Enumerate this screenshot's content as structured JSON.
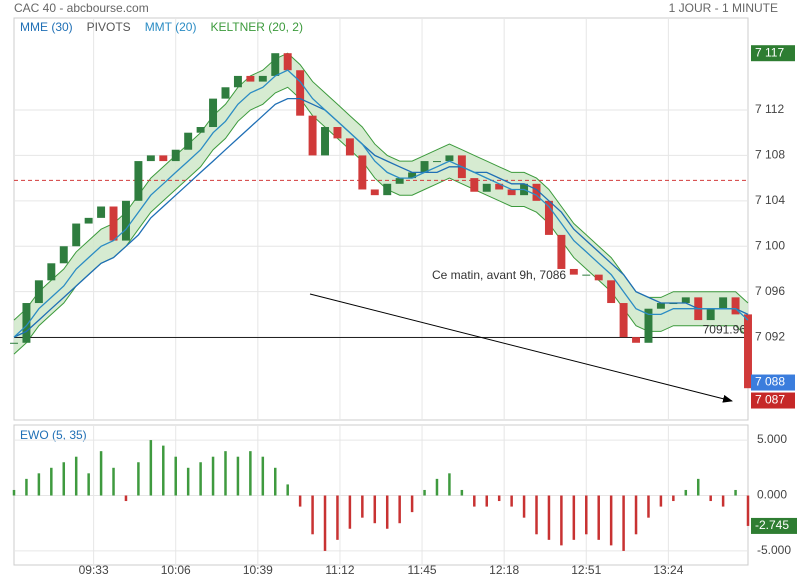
{
  "header": {
    "title": "CAC 40 - abcbourse.com",
    "period": "1 JOUR - 1 MINUTE"
  },
  "chart_data": [
    {
      "type": "candlestick",
      "x": [
        541,
        546,
        551,
        556,
        561,
        566,
        571,
        576,
        581,
        586,
        591,
        596,
        601,
        606,
        611,
        616,
        621,
        626,
        631,
        636,
        641,
        646,
        651,
        656,
        661,
        666,
        671,
        676,
        681,
        686,
        691,
        696,
        701,
        706,
        711,
        716,
        721,
        726,
        731,
        736,
        741,
        746,
        751,
        756,
        761,
        766,
        771,
        776,
        781,
        786,
        791,
        796,
        801,
        806,
        811,
        816,
        821,
        826,
        831,
        836
      ],
      "values": [
        7091.5,
        7095,
        7097,
        7098.5,
        7100,
        7102,
        7102.5,
        7103.5,
        7100.5,
        7104,
        7107.5,
        7108,
        7107.5,
        7108.5,
        7110,
        7110.5,
        7113,
        7114,
        7115,
        7114.5,
        7115,
        7117,
        7115.5,
        7111.5,
        7108,
        7110.5,
        7109.5,
        7108,
        7105,
        7104.5,
        7105.5,
        7106,
        7106.5,
        7107.5,
        7107.5,
        7108,
        7106,
        7104.8,
        7105.5,
        7105,
        7104.5,
        7105.5,
        7104,
        7101,
        7098,
        7097.5,
        7097.5,
        7097,
        7095,
        7092,
        7091.5,
        7094.5,
        7095,
        7095,
        7095.5,
        7093.5,
        7094.5,
        7095.5,
        7094,
        7087.5
      ],
      "up_color": "#2f7d3f",
      "down_color": "#d03a3a",
      "series": [
        {
          "name": "MME (30)",
          "color": "#1f6fb5",
          "values": [
            7092,
            7092.5,
            7093.5,
            7094.5,
            7095.5,
            7096.5,
            7097.5,
            7098.5,
            7099,
            7100,
            7101,
            7102.5,
            7103.5,
            7104.5,
            7105.5,
            7106.5,
            7107.5,
            7108.5,
            7109.5,
            7110.5,
            7111.5,
            7112.5,
            7113,
            7113,
            7112.5,
            7112,
            7111,
            7110,
            7109,
            7108,
            7107.5,
            7107,
            7106.5,
            7106.5,
            7106.5,
            7107,
            7107,
            7106.5,
            7106.5,
            7106,
            7105.5,
            7105.5,
            7105,
            7104,
            7103,
            7101.5,
            7100.5,
            7099.5,
            7098.5,
            7097.5,
            7096,
            7095.5,
            7095,
            7095,
            7095,
            7094.5,
            7094.5,
            7094.5,
            7094.5,
            7094
          ]
        },
        {
          "name": "MMT (20)",
          "color": "#2b8cc4",
          "values": [
            7092,
            7093,
            7094.5,
            7095.5,
            7096.5,
            7098,
            7099,
            7100,
            7100.5,
            7101.5,
            7103,
            7104.5,
            7105.5,
            7106.5,
            7107.5,
            7108.5,
            7110,
            7111,
            7112.5,
            7113.5,
            7114,
            7115,
            7115.5,
            7114.5,
            7113,
            7112,
            7111,
            7110,
            7109,
            7107.5,
            7106.5,
            7106,
            7106,
            7106.5,
            7107,
            7107.5,
            7107,
            7106.5,
            7106,
            7105.5,
            7105,
            7105,
            7104.5,
            7103.5,
            7102,
            7100.5,
            7099.5,
            7098.5,
            7097.5,
            7096,
            7094.5,
            7094,
            7094,
            7094.5,
            7094.5,
            7094.5,
            7094.5,
            7094.5,
            7094.5,
            7093.5
          ]
        }
      ],
      "band": {
        "name": "KELTNER (20, 2)",
        "color": "#3c9a3c",
        "fill": "#cfe8c9",
        "upper": [
          7093.5,
          7094.5,
          7096,
          7097,
          7098,
          7099.5,
          7100.5,
          7101.5,
          7102,
          7103,
          7104.5,
          7106,
          7107,
          7108,
          7109,
          7110,
          7111.5,
          7112.5,
          7114,
          7115,
          7115.5,
          7116.5,
          7117,
          7116,
          7114.5,
          7113.5,
          7112.5,
          7111.5,
          7110.5,
          7109,
          7108,
          7107.5,
          7107.5,
          7108,
          7108.5,
          7109,
          7108.5,
          7108,
          7107.5,
          7107,
          7106.5,
          7106.5,
          7106,
          7105,
          7103.5,
          7102,
          7101,
          7100,
          7099,
          7097.5,
          7096,
          7095.5,
          7095.5,
          7096,
          7096,
          7096,
          7096,
          7096,
          7096,
          7095
        ],
        "lower": [
          7090.5,
          7091.5,
          7093,
          7094,
          7095,
          7096.5,
          7097.5,
          7098.5,
          7099,
          7100,
          7101.5,
          7103,
          7104,
          7105,
          7106,
          7107,
          7108.5,
          7109.5,
          7111,
          7112,
          7112.5,
          7113.5,
          7114,
          7113,
          7111.5,
          7110.5,
          7109.5,
          7108.5,
          7107.5,
          7106,
          7105,
          7104.5,
          7104.5,
          7105,
          7105.5,
          7106,
          7105.5,
          7105,
          7104.5,
          7104,
          7103.5,
          7103.5,
          7103,
          7102,
          7100.5,
          7099,
          7098,
          7097,
          7096,
          7094.5,
          7093,
          7092.5,
          7092.5,
          7093,
          7093,
          7093,
          7093,
          7093,
          7093,
          7092
        ]
      },
      "pivot": {
        "name": "PIVOTS",
        "value": 7105.8,
        "color": "#d33b3b"
      },
      "hline": {
        "value": 7091.96,
        "label": "7091.96"
      },
      "annotation": "Ce matin, avant 9h, 7086",
      "price_labels": [
        {
          "value": 7117,
          "label": "7 117",
          "color": "#2e7d32"
        },
        {
          "value": 7088,
          "label": "7 088",
          "color": "#3b7ddd"
        },
        {
          "value": 7087,
          "label": "7 087",
          "color": "#c62828"
        }
      ],
      "xlim": [
        541,
        836
      ],
      "ylim": [
        7084.7,
        7120.1
      ],
      "yticks": [
        {
          "value": 7092,
          "label": "7 092"
        },
        {
          "value": 7096,
          "label": "7 096"
        },
        {
          "value": 7100,
          "label": "7 100"
        },
        {
          "value": 7104,
          "label": "7 104"
        },
        {
          "value": 7108,
          "label": "7 108"
        },
        {
          "value": 7112,
          "label": "7 112"
        }
      ],
      "grid": true
    },
    {
      "type": "bar",
      "title": "EWO (5, 35)",
      "x": [
        541,
        546,
        551,
        556,
        561,
        566,
        571,
        576,
        581,
        586,
        591,
        596,
        601,
        606,
        611,
        616,
        621,
        626,
        631,
        636,
        641,
        646,
        651,
        656,
        661,
        666,
        671,
        676,
        681,
        686,
        691,
        696,
        701,
        706,
        711,
        716,
        721,
        726,
        731,
        736,
        741,
        746,
        751,
        756,
        761,
        766,
        771,
        776,
        781,
        786,
        791,
        796,
        801,
        806,
        811,
        816,
        821,
        826,
        831,
        836
      ],
      "values": [
        0.5,
        1.5,
        2,
        2.5,
        3,
        3.5,
        2,
        4,
        2.5,
        -0.5,
        3,
        5,
        4.5,
        3.5,
        2.5,
        3,
        3.5,
        4,
        3.5,
        4,
        3.5,
        2.5,
        1,
        -1,
        -3.5,
        -5,
        -4,
        -3,
        -2,
        -2.5,
        -3,
        -2.5,
        -1.5,
        0.5,
        1.5,
        2,
        0.5,
        -1,
        -1,
        -0.5,
        -1,
        -2,
        -3.5,
        -4,
        -4.5,
        -4,
        -3.5,
        -4,
        -4.5,
        -5,
        -3.5,
        -2,
        -1,
        -0.5,
        0.5,
        1.5,
        -0.5,
        -1,
        0.5,
        -2.745
      ],
      "up_color": "#3f9a3f",
      "down_color": "#c83232",
      "last_color": "#2e7d32",
      "xlim": [
        541,
        836
      ],
      "ylim": [
        -6.27,
        6.36
      ],
      "yticks": [
        {
          "value": 5,
          "label": "5.000"
        },
        {
          "value": 0,
          "label": "0.000"
        },
        {
          "value": -5,
          "label": "-5.000"
        }
      ],
      "xticks": [
        {
          "value": 573,
          "label": "09:33"
        },
        {
          "value": 606,
          "label": "10:06"
        },
        {
          "value": 639,
          "label": "10:39"
        },
        {
          "value": 672,
          "label": "11:12"
        },
        {
          "value": 705,
          "label": "11:45"
        },
        {
          "value": 738,
          "label": "12:18"
        },
        {
          "value": 771,
          "label": "12:51"
        },
        {
          "value": 804,
          "label": "13:24"
        }
      ],
      "grid": true
    }
  ]
}
